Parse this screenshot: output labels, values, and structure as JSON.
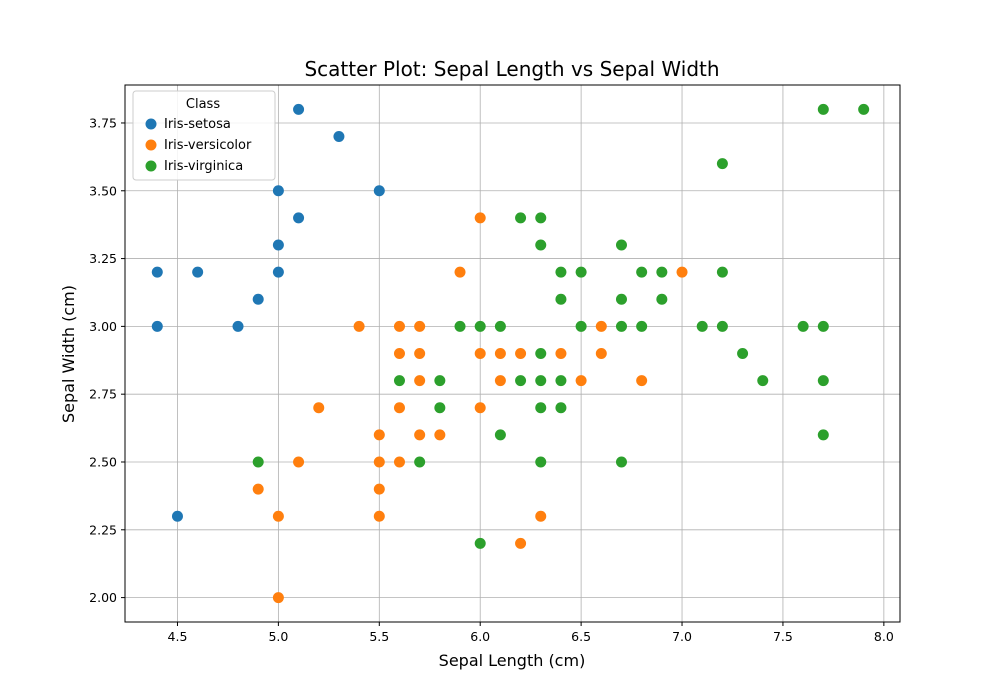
{
  "chart_data": {
    "type": "scatter",
    "title": "Scatter Plot: Sepal Length vs Sepal Width",
    "xlabel": "Sepal Length (cm)",
    "ylabel": "Sepal Width (cm)",
    "xlim": [
      4.24,
      8.08
    ],
    "ylim": [
      1.91,
      3.89
    ],
    "xticks": [
      4.5,
      5.0,
      5.5,
      6.0,
      6.5,
      7.0,
      7.5,
      8.0
    ],
    "xtick_labels": [
      "4.5",
      "5.0",
      "5.5",
      "6.0",
      "6.5",
      "7.0",
      "7.5",
      "8.0"
    ],
    "yticks": [
      2.0,
      2.25,
      2.5,
      2.75,
      3.0,
      3.25,
      3.5,
      3.75
    ],
    "ytick_labels": [
      "2.00",
      "2.25",
      "2.50",
      "2.75",
      "3.00",
      "3.25",
      "3.50",
      "3.75"
    ],
    "grid": true,
    "legend": {
      "title": "Class",
      "placement": "top-left"
    },
    "series": [
      {
        "name": "Iris-setosa",
        "color": "#1f77b4",
        "points": [
          [
            5.1,
            3.8
          ],
          [
            5.3,
            3.7
          ],
          [
            5.0,
            3.5
          ],
          [
            5.5,
            3.5
          ],
          [
            5.1,
            3.4
          ],
          [
            5.0,
            3.3
          ],
          [
            4.4,
            3.2
          ],
          [
            4.6,
            3.2
          ],
          [
            5.0,
            3.2
          ],
          [
            4.9,
            3.1
          ],
          [
            4.4,
            3.0
          ],
          [
            4.8,
            3.0
          ],
          [
            4.5,
            2.3
          ]
        ]
      },
      {
        "name": "Iris-versicolor",
        "color": "#ff7f0e",
        "points": [
          [
            6.0,
            3.4
          ],
          [
            5.9,
            3.2
          ],
          [
            7.0,
            3.2
          ],
          [
            5.4,
            3.0
          ],
          [
            5.6,
            3.0
          ],
          [
            5.7,
            3.0
          ],
          [
            6.6,
            3.0
          ],
          [
            5.6,
            2.9
          ],
          [
            5.7,
            2.9
          ],
          [
            6.0,
            2.9
          ],
          [
            6.1,
            2.9
          ],
          [
            6.2,
            2.9
          ],
          [
            6.4,
            2.9
          ],
          [
            6.6,
            2.9
          ],
          [
            5.7,
            2.8
          ],
          [
            6.1,
            2.8
          ],
          [
            6.5,
            2.8
          ],
          [
            6.8,
            2.8
          ],
          [
            5.2,
            2.7
          ],
          [
            5.6,
            2.7
          ],
          [
            6.0,
            2.7
          ],
          [
            5.5,
            2.6
          ],
          [
            5.7,
            2.6
          ],
          [
            5.8,
            2.6
          ],
          [
            5.1,
            2.5
          ],
          [
            5.5,
            2.5
          ],
          [
            5.6,
            2.5
          ],
          [
            4.9,
            2.4
          ],
          [
            5.5,
            2.4
          ],
          [
            5.0,
            2.3
          ],
          [
            5.5,
            2.3
          ],
          [
            6.3,
            2.3
          ],
          [
            6.2,
            2.2
          ],
          [
            5.0,
            2.0
          ]
        ]
      },
      {
        "name": "Iris-virginica",
        "color": "#2ca02c",
        "points": [
          [
            7.7,
            3.8
          ],
          [
            7.9,
            3.8
          ],
          [
            7.2,
            3.6
          ],
          [
            6.2,
            3.4
          ],
          [
            6.3,
            3.4
          ],
          [
            6.3,
            3.3
          ],
          [
            6.7,
            3.3
          ],
          [
            6.4,
            3.2
          ],
          [
            6.5,
            3.2
          ],
          [
            6.8,
            3.2
          ],
          [
            6.9,
            3.2
          ],
          [
            7.2,
            3.2
          ],
          [
            6.4,
            3.1
          ],
          [
            6.7,
            3.1
          ],
          [
            6.9,
            3.1
          ],
          [
            5.9,
            3.0
          ],
          [
            6.0,
            3.0
          ],
          [
            6.1,
            3.0
          ],
          [
            6.5,
            3.0
          ],
          [
            6.7,
            3.0
          ],
          [
            6.8,
            3.0
          ],
          [
            7.1,
            3.0
          ],
          [
            7.2,
            3.0
          ],
          [
            7.6,
            3.0
          ],
          [
            7.7,
            3.0
          ],
          [
            6.3,
            2.9
          ],
          [
            7.3,
            2.9
          ],
          [
            5.6,
            2.8
          ],
          [
            5.8,
            2.8
          ],
          [
            6.2,
            2.8
          ],
          [
            6.3,
            2.8
          ],
          [
            6.4,
            2.8
          ],
          [
            7.4,
            2.8
          ],
          [
            7.7,
            2.8
          ],
          [
            5.8,
            2.7
          ],
          [
            6.3,
            2.7
          ],
          [
            6.4,
            2.7
          ],
          [
            6.1,
            2.6
          ],
          [
            7.7,
            2.6
          ],
          [
            4.9,
            2.5
          ],
          [
            5.7,
            2.5
          ],
          [
            6.3,
            2.5
          ],
          [
            6.7,
            2.5
          ],
          [
            6.0,
            2.2
          ]
        ]
      }
    ]
  }
}
